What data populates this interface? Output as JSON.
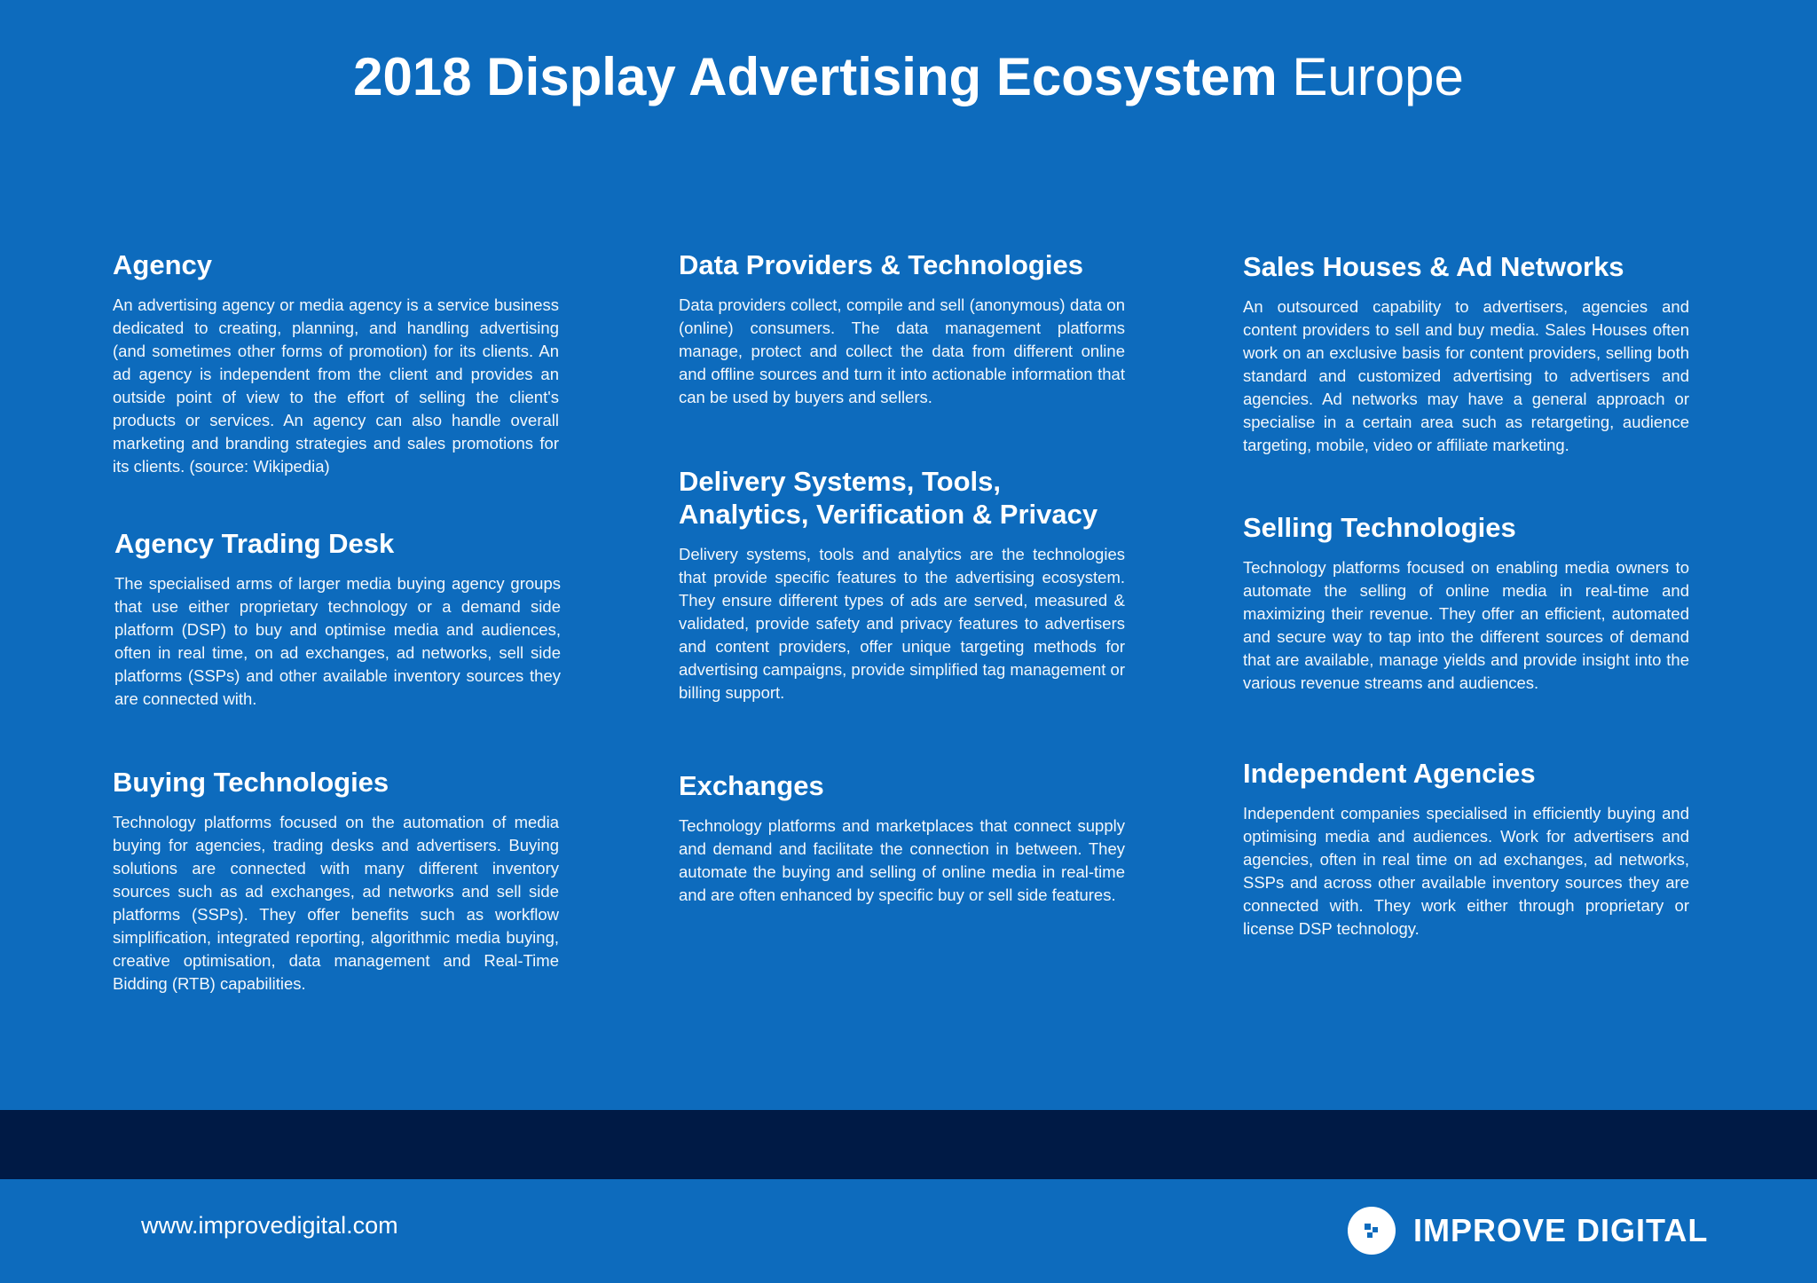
{
  "header": {
    "title_bold": "2018 Display Advertising Ecosystem",
    "title_light": "Europe"
  },
  "sections": [
    {
      "heading": "Agency",
      "body": "An advertising agency or media agency is a service business dedicated to creating, planning, and handling advertising (and sometimes other forms of promotion) for its clients. An ad agency is independent from the client and provides an outside point of view to the effort of selling the client's products or services. An agency can also handle overall marketing and branding strategies and sales promotions for its clients. (source: Wikipedia)"
    },
    {
      "heading": "Agency Trading Desk",
      "body": "The specialised arms of larger media buying agency groups that use either proprietary technology or a demand side platform (DSP) to buy and optimise media and audiences, often in real time, on ad exchanges, ad networks, sell side platforms (SSPs) and other available inventory sources they are connected with."
    },
    {
      "heading": "Buying Technologies",
      "body": "Technology platforms focused on the automation of media buying for agencies, trading desks and advertisers. Buying solutions are connected with many different inventory sources such as ad exchanges, ad networks and sell side platforms (SSPs). They offer benefits such as workflow simplification, integrated reporting, algorithmic media buying, creative optimisation, data management and Real-Time Bidding (RTB) capabilities."
    },
    {
      "heading": "Data Providers & Technologies",
      "body": "Data providers collect, compile and sell (anonymous) data on (online) consumers. The data management platforms manage, protect and collect the data from different online and offline sources and turn it into actionable information that can be used by buyers and sellers."
    },
    {
      "heading": "Delivery Systems, Tools, Analytics, Verification & Privacy",
      "body": "Delivery systems, tools and analytics are the technologies that provide specific features to the advertising ecosystem. They ensure different types of ads are served, measured & validated, provide safety and privacy features to advertisers and content providers, offer unique targeting methods for advertising campaigns, provide simplified tag management or billing support."
    },
    {
      "heading": "Exchanges",
      "body": "Technology platforms and marketplaces that connect supply and demand and facilitate the connection in between. They automate the buying and selling of online media in real-time and are often enhanced by specific buy or sell side features."
    },
    {
      "heading": "Sales Houses & Ad Networks",
      "body": "An outsourced capability to advertisers, agencies and content providers to sell and buy media. Sales Houses often work on an exclusive basis for content providers, selling both standard and customized advertising to advertisers and agencies. Ad networks may have a general approach or specialise in a certain area such as retargeting, audience targeting, mobile, video or affiliate marketing."
    },
    {
      "heading": "Selling Technologies",
      "body": "Technology platforms focused on enabling media owners to automate the selling of online media in real-time and maximizing their revenue. They offer an efficient, automated and secure way to tap into the different sources of demand that are available, manage yields and provide insight into the various revenue streams and audiences."
    },
    {
      "heading": "Independent Agencies",
      "body": "Independent companies specialised in efficiently buying and optimising media and audiences. Work for advertisers and agencies, often in real time on ad exchanges, ad networks, SSPs and across other available inventory sources they are connected with. They work either through proprietary or license DSP technology."
    }
  ],
  "footer": {
    "url": "www.improvedigital.com",
    "logo": "IMPROVE DIGITAL"
  }
}
